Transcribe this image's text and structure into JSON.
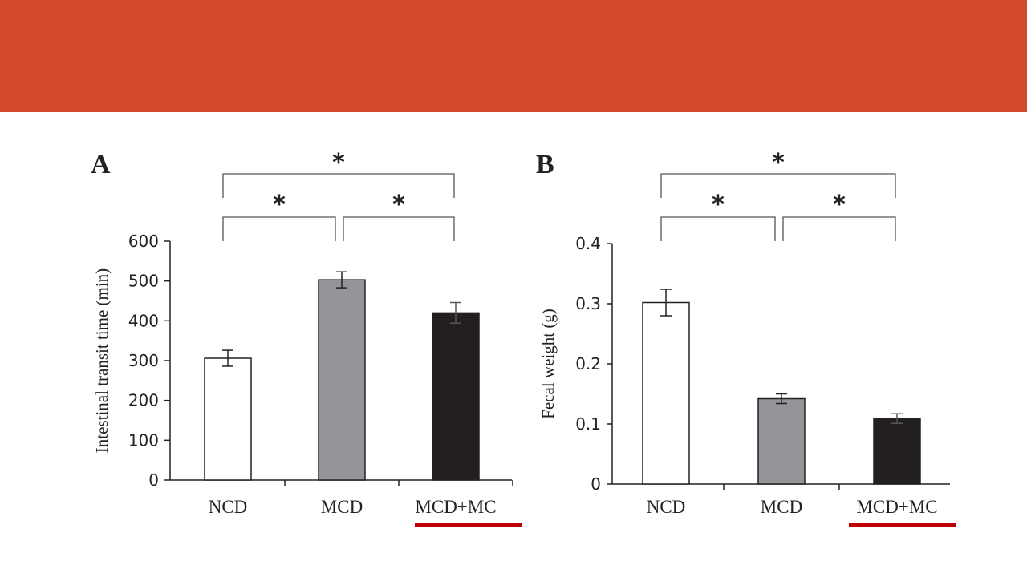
{
  "slide": {
    "banner_color": "#d2492a",
    "underline_color": "#c00000"
  },
  "chart_data": [
    {
      "type": "bar",
      "panel_label": "A",
      "categories": [
        "NCD",
        "MCD",
        "MCD+MC"
      ],
      "values": [
        306,
        503,
        420
      ],
      "errors": [
        20,
        20,
        26
      ],
      "bar_colors": [
        "#ffffff",
        "#939598",
        "#231f20"
      ],
      "ylabel": "Intestinal transit time (min)",
      "ylim": [
        0,
        600
      ],
      "yticks": [
        0,
        100,
        200,
        300,
        400,
        500,
        600
      ],
      "ytick_labels": [
        "0",
        "100",
        "200",
        "300",
        "400",
        "500",
        "600"
      ],
      "significance": [
        {
          "from": 0,
          "to": 1,
          "label": "*"
        },
        {
          "from": 1,
          "to": 2,
          "label": "*"
        },
        {
          "from": 0,
          "to": 2,
          "label": "*"
        }
      ],
      "underlined_category": "MCD+MC",
      "grid": false
    },
    {
      "type": "bar",
      "panel_label": "B",
      "categories": [
        "NCD",
        "MCD",
        "MCD+MC"
      ],
      "values": [
        0.302,
        0.142,
        0.109
      ],
      "errors": [
        0.022,
        0.008,
        0.008
      ],
      "bar_colors": [
        "#ffffff",
        "#939598",
        "#231f20"
      ],
      "ylabel": "Fecal weight (g)",
      "ylim": [
        0,
        0.4
      ],
      "yticks": [
        0,
        0.1,
        0.2,
        0.3,
        0.4
      ],
      "ytick_labels": [
        "0",
        "0.1",
        "0.2",
        "0.3",
        "0.4"
      ],
      "significance": [
        {
          "from": 0,
          "to": 1,
          "label": "*"
        },
        {
          "from": 1,
          "to": 2,
          "label": "*"
        },
        {
          "from": 0,
          "to": 2,
          "label": "*"
        }
      ],
      "underlined_category": "MCD+MC",
      "grid": false
    }
  ]
}
